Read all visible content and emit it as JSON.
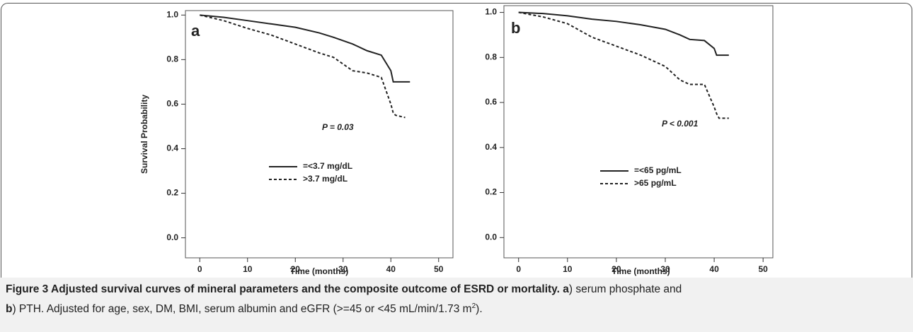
{
  "chart_data": [
    {
      "type": "line",
      "panel_label": "a",
      "annotation": "P = 0.03",
      "ylabel": "Survival Probability",
      "xlabel": "Time (months)",
      "xlim": [
        -3,
        53
      ],
      "ylim": [
        -0.09,
        1.02
      ],
      "xticks": [
        0,
        10,
        20,
        30,
        40,
        50
      ],
      "yticks": [
        {
          "value": 0,
          "label": "0.0"
        },
        0.2,
        0.4,
        0.6,
        0.8,
        {
          "value": 1,
          "label": "1.0"
        }
      ],
      "grid": false,
      "x": [
        0,
        5,
        10,
        15,
        20,
        25,
        28,
        30,
        32,
        35,
        38,
        40,
        40.5,
        41,
        43,
        44
      ],
      "series": [
        {
          "name": "=<3.7 mg/dL",
          "color": "#222222",
          "dash": "solid",
          "values": [
            1.0,
            0.99,
            0.975,
            0.96,
            0.945,
            0.92,
            0.9,
            0.885,
            0.87,
            0.84,
            0.82,
            0.75,
            0.7,
            0.7,
            0.7,
            0.7
          ]
        },
        {
          "name": ">3.7 mg/dL",
          "color": "#222222",
          "dash": "dashed",
          "values": [
            1.0,
            0.975,
            0.94,
            0.91,
            0.87,
            0.83,
            0.81,
            0.78,
            0.75,
            0.74,
            0.72,
            0.6,
            0.56,
            0.55,
            0.54,
            null
          ]
        }
      ]
    },
    {
      "type": "line",
      "panel_label": "b",
      "annotation": "P < 0.001",
      "xlabel": "Time (months)",
      "xlim": [
        -3,
        52
      ],
      "ylim": [
        -0.09,
        1.03
      ],
      "xticks": [
        0,
        10,
        20,
        30,
        40,
        50
      ],
      "yticks": [
        {
          "value": 0,
          "label": "0.0"
        },
        0.2,
        0.4,
        0.6,
        0.8,
        {
          "value": 1,
          "label": "1.0"
        }
      ],
      "grid": false,
      "x": [
        0,
        5,
        10,
        15,
        20,
        25,
        30,
        33,
        35,
        38,
        40,
        40.5,
        41,
        43
      ],
      "series": [
        {
          "name": "=<65 pg/mL",
          "color": "#222222",
          "dash": "solid",
          "values": [
            1.0,
            0.995,
            0.985,
            0.97,
            0.96,
            0.945,
            0.925,
            0.9,
            0.88,
            0.875,
            0.84,
            0.81,
            0.81,
            0.81
          ]
        },
        {
          "name": ">65 pg/mL",
          "color": "#222222",
          "dash": "dashed",
          "values": [
            1.0,
            0.98,
            0.95,
            0.89,
            0.85,
            0.81,
            0.76,
            0.7,
            0.68,
            0.68,
            0.58,
            0.55,
            0.53,
            0.53
          ]
        }
      ]
    }
  ],
  "caption": {
    "parts": [
      {
        "text": "Figure 3 Adjusted survival curves of mineral parameters and the composite outcome of ESRD or mortality.",
        "bold": true
      },
      {
        "text": " ",
        "bold": false
      },
      {
        "text": "a",
        "bold": true
      },
      {
        "text": ") serum phosphate and",
        "bold": false
      },
      {
        "text": "b",
        "bold": true
      },
      {
        "text": ") PTH. Adjusted for age, sex, DM, BMI, serum albumin and eGFR (>=45 or <45 mL/min/1.73 m",
        "bold": false
      },
      {
        "text": "2",
        "bold": false,
        "sup": true
      },
      {
        "text": ").",
        "bold": false
      }
    ]
  }
}
